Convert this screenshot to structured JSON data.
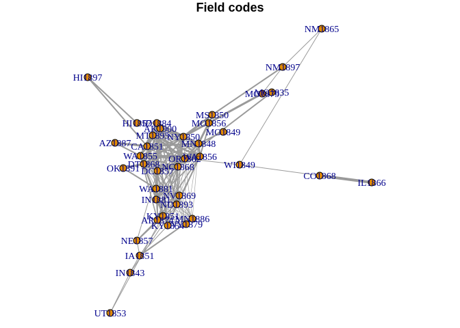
{
  "title": "Field codes",
  "colors": {
    "node_fill": "#e08a00",
    "node_stroke": "#000000",
    "label": "#00008b",
    "edge": "#9a9a9a"
  },
  "nodes": [
    {
      "id": "NM1865",
      "label": "NM1865"
    },
    {
      "id": "NM1897",
      "label": "NM1897"
    },
    {
      "id": "MO1879",
      "label": "MO1879"
    },
    {
      "id": "MO1835",
      "label": "MO1835"
    },
    {
      "id": "HI1897",
      "label": "HI1897"
    },
    {
      "id": "MS1850",
      "label": "MS1850"
    },
    {
      "id": "MO1856",
      "label": "MO1856"
    },
    {
      "id": "MO1849",
      "label": "MO1849"
    },
    {
      "id": "HI1857",
      "label": "HI1857"
    },
    {
      "id": "ID1884",
      "label": "ID1884"
    },
    {
      "id": "AK1900",
      "label": "AK1900"
    },
    {
      "id": "AZ1887",
      "label": "AZ1887"
    },
    {
      "id": "WI1849",
      "label": "WI1849"
    },
    {
      "id": "OK1891",
      "label": "OK1891"
    },
    {
      "id": "DC1857",
      "label": "DC1857"
    },
    {
      "id": "CO1868",
      "label": "CO1868"
    },
    {
      "id": "IL1866",
      "label": "IL1866"
    },
    {
      "id": "MN1848",
      "label": "MN1848"
    },
    {
      "id": "NY1850",
      "label": "NY1850"
    },
    {
      "id": "CA1851",
      "label": "CA1851"
    },
    {
      "id": "WA1855",
      "label": "WA1855"
    },
    {
      "id": "DT1868",
      "label": "DT1868"
    },
    {
      "id": "WA1856",
      "label": "WA1856"
    },
    {
      "id": "MT1895",
      "label": "MT1895"
    },
    {
      "id": "WA1881",
      "label": "WA1881"
    },
    {
      "id": "NC1868",
      "label": "NC1868"
    },
    {
      "id": "OR1862",
      "label": "OR1862"
    },
    {
      "id": "IN1881",
      "label": "IN1881"
    },
    {
      "id": "NV1869",
      "label": "NV1869"
    },
    {
      "id": "ND1893",
      "label": "ND1893"
    },
    {
      "id": "KY1851",
      "label": "KY1851"
    },
    {
      "id": "AR1874",
      "label": "AR1874"
    },
    {
      "id": "MN1886",
      "label": "MN1886"
    },
    {
      "id": "KY1854",
      "label": "KY1854"
    },
    {
      "id": "NY1879",
      "label": "NY1879"
    },
    {
      "id": "NE1857",
      "label": "NE1857"
    },
    {
      "id": "IA1851",
      "label": "IA1851"
    },
    {
      "id": "IN1843",
      "label": "IN1843"
    },
    {
      "id": "UT1853",
      "label": "UT1853"
    }
  ]
}
